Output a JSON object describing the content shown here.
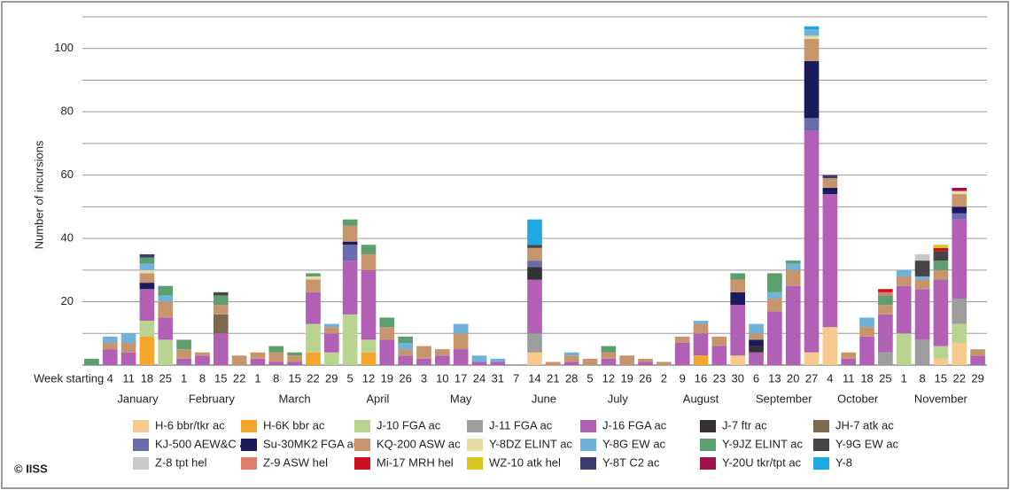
{
  "chart_data": {
    "type": "stacked-bar",
    "y_label": "Number of incursions",
    "x_label": "Week starting",
    "source": "© IISS",
    "categories": [
      null,
      4,
      11,
      18,
      25,
      1,
      8,
      15,
      22,
      1,
      8,
      15,
      22,
      29,
      5,
      12,
      19,
      26,
      3,
      10,
      17,
      24,
      31,
      7,
      14,
      21,
      28,
      5,
      12,
      19,
      26,
      2,
      9,
      16,
      23,
      30,
      6,
      13,
      20,
      27,
      4,
      11,
      18,
      25,
      1,
      8,
      15,
      22,
      29
    ],
    "months": [
      "January",
      "February",
      "March",
      "April",
      "May",
      "June",
      "July",
      "August",
      "September",
      "October",
      "November"
    ],
    "ylim": [
      0,
      110
    ],
    "yticks": [
      20,
      40,
      60,
      80,
      100
    ],
    "minor_yticks": [
      10,
      30,
      50,
      70,
      90,
      110
    ],
    "grid": true,
    "series": [
      {
        "name": "H-6 bbr/tkr ac",
        "color": "#f7c98c",
        "values": [
          0,
          0,
          0,
          0,
          0,
          0,
          0,
          0,
          0,
          0,
          0,
          0,
          0,
          0,
          0,
          0,
          0,
          0,
          0,
          0,
          0,
          0,
          0,
          0,
          4,
          0,
          0,
          0,
          0,
          0,
          0,
          0,
          0,
          0,
          0,
          3,
          0,
          0,
          0,
          4,
          12,
          0,
          0,
          0,
          0,
          0,
          2,
          7,
          0
        ]
      },
      {
        "name": "H-6K bbr ac",
        "color": "#f5a52a",
        "values": [
          0,
          0,
          0,
          9,
          0,
          0,
          0,
          0,
          0,
          0,
          0,
          0,
          4,
          0,
          0,
          4,
          0,
          0,
          0,
          0,
          0,
          0,
          0,
          0,
          0,
          0,
          0,
          0,
          0,
          0,
          0,
          0,
          0,
          3,
          0,
          0,
          0,
          0,
          0,
          0,
          0,
          0,
          0,
          0,
          0,
          0,
          0,
          0,
          0
        ]
      },
      {
        "name": "J-10 FGA ac",
        "color": "#b9d491",
        "values": [
          0,
          0,
          0,
          5,
          8,
          0,
          0,
          0,
          0,
          0,
          0,
          0,
          9,
          4,
          16,
          4,
          0,
          0,
          0,
          0,
          0,
          0,
          0,
          0,
          0,
          0,
          0,
          0,
          0,
          0,
          0,
          0,
          0,
          0,
          0,
          0,
          0,
          0,
          0,
          0,
          0,
          0,
          0,
          0,
          10,
          0,
          4,
          6,
          0
        ]
      },
      {
        "name": "J-11 FGA ac",
        "color": "#9d9d9d",
        "values": [
          0,
          0,
          0,
          0,
          0,
          0,
          0,
          0,
          0,
          0,
          0,
          0,
          0,
          0,
          0,
          0,
          0,
          0,
          0,
          0,
          0,
          0,
          0,
          0,
          6,
          0,
          0,
          0,
          0,
          0,
          0,
          0,
          0,
          0,
          0,
          0,
          0,
          0,
          0,
          0,
          0,
          0,
          0,
          4,
          0,
          8,
          0,
          8,
          0
        ]
      },
      {
        "name": "J-16 FGA ac",
        "color": "#b160b5",
        "values": [
          0,
          5,
          4,
          10,
          7,
          2,
          3,
          10,
          0,
          2,
          1,
          1,
          10,
          6,
          17,
          22,
          8,
          3,
          2,
          3,
          5,
          1,
          1,
          0,
          17,
          0,
          1,
          0,
          2,
          0,
          1,
          0,
          7,
          7,
          6,
          16,
          4,
          17,
          25,
          70,
          42,
          2,
          9,
          12,
          15,
          16,
          21,
          25,
          3
        ]
      },
      {
        "name": "J-7 ftr ac",
        "color": "#333333",
        "values": [
          0,
          0,
          0,
          0,
          0,
          0,
          0,
          0,
          0,
          0,
          0,
          0,
          0,
          0,
          0,
          0,
          0,
          0,
          0,
          0,
          0,
          0,
          0,
          0,
          4,
          0,
          0,
          0,
          0,
          0,
          0,
          0,
          0,
          0,
          0,
          0,
          2,
          0,
          0,
          0,
          0,
          0,
          0,
          0,
          0,
          0,
          0,
          0,
          0
        ]
      },
      {
        "name": "JH-7 atk ac",
        "color": "#7b6a4e",
        "values": [
          0,
          0,
          0,
          0,
          0,
          0,
          0,
          6,
          0,
          0,
          0,
          0,
          0,
          0,
          0,
          0,
          0,
          0,
          0,
          0,
          0,
          0,
          0,
          0,
          0,
          0,
          0,
          0,
          0,
          0,
          0,
          0,
          0,
          0,
          0,
          0,
          0,
          0,
          0,
          0,
          0,
          0,
          0,
          0,
          0,
          0,
          0,
          0,
          0
        ]
      },
      {
        "name": "KJ-500 AEW&C ac",
        "color": "#6b6bae",
        "values": [
          0,
          0,
          0,
          0,
          0,
          0,
          0,
          0,
          0,
          0,
          0,
          0,
          0,
          0,
          5,
          0,
          0,
          0,
          0,
          0,
          0,
          0,
          0,
          0,
          2,
          0,
          0,
          0,
          0,
          0,
          0,
          0,
          0,
          0,
          0,
          0,
          0,
          0,
          0,
          4,
          0,
          0,
          0,
          0,
          0,
          0,
          0,
          2,
          0
        ]
      },
      {
        "name": "Su-30MK2 FGA ac",
        "color": "#1b1a5c",
        "values": [
          0,
          0,
          0,
          2,
          0,
          0,
          0,
          0,
          0,
          0,
          0,
          0,
          0,
          0,
          1,
          0,
          0,
          0,
          0,
          0,
          0,
          0,
          0,
          0,
          0,
          0,
          0,
          0,
          0,
          0,
          0,
          0,
          0,
          0,
          0,
          4,
          2,
          0,
          0,
          18,
          2,
          0,
          0,
          0,
          0,
          0,
          0,
          2,
          0
        ]
      },
      {
        "name": "KQ-200 ASW ac",
        "color": "#c7956b",
        "values": [
          0,
          2,
          3,
          3,
          5,
          3,
          1,
          3,
          3,
          2,
          3,
          2,
          4,
          2,
          5,
          5,
          4,
          2,
          4,
          2,
          5,
          0,
          0,
          0,
          4,
          1,
          2,
          2,
          2,
          3,
          1,
          1,
          2,
          3,
          3,
          4,
          2,
          4,
          5,
          7,
          3,
          2,
          3,
          3,
          3,
          3,
          3,
          4,
          2
        ]
      },
      {
        "name": "Y-8DZ ELINT ac",
        "color": "#e6dba1",
        "values": [
          0,
          0,
          0,
          1,
          0,
          0,
          0,
          0,
          0,
          0,
          0,
          0,
          1,
          0,
          0,
          0,
          0,
          0,
          0,
          0,
          0,
          0,
          0,
          0,
          0,
          0,
          0,
          0,
          0,
          0,
          0,
          0,
          0,
          0,
          0,
          0,
          0,
          0,
          0,
          1,
          0,
          0,
          0,
          0,
          0,
          0,
          0,
          1,
          0
        ]
      },
      {
        "name": "Y-8G EW ac",
        "color": "#6fb1d9",
        "values": [
          0,
          2,
          3,
          2,
          2,
          0,
          0,
          0,
          0,
          0,
          0,
          0,
          0,
          1,
          0,
          0,
          0,
          2,
          0,
          0,
          3,
          2,
          1,
          0,
          0,
          0,
          1,
          0,
          0,
          0,
          0,
          0,
          0,
          1,
          0,
          0,
          3,
          2,
          2,
          2,
          0,
          0,
          3,
          0,
          2,
          1,
          0,
          0,
          0
        ]
      },
      {
        "name": "Y-9JZ ELINT ac",
        "color": "#5c9e6f",
        "values": [
          2,
          0,
          0,
          2,
          3,
          3,
          0,
          3,
          0,
          0,
          2,
          1,
          1,
          0,
          2,
          3,
          3,
          2,
          0,
          0,
          0,
          0,
          0,
          0,
          0,
          0,
          0,
          0,
          2,
          0,
          0,
          0,
          0,
          0,
          0,
          2,
          0,
          6,
          1,
          0,
          0,
          0,
          0,
          3,
          0,
          0,
          3,
          0,
          0
        ]
      },
      {
        "name": "Y-9G EW ac",
        "color": "#454545",
        "values": [
          0,
          0,
          0,
          0,
          0,
          0,
          0,
          1,
          0,
          0,
          0,
          0,
          0,
          0,
          0,
          0,
          0,
          0,
          0,
          0,
          0,
          0,
          0,
          0,
          1,
          0,
          0,
          0,
          0,
          0,
          0,
          0,
          0,
          0,
          0,
          0,
          0,
          0,
          0,
          0,
          0,
          0,
          0,
          0,
          0,
          5,
          3,
          0,
          0
        ]
      },
      {
        "name": "Z-8 tpt hel",
        "color": "#c9c9c9",
        "values": [
          0,
          0,
          0,
          0,
          0,
          0,
          0,
          0,
          0,
          0,
          0,
          0,
          0,
          0,
          0,
          0,
          0,
          0,
          0,
          0,
          0,
          0,
          0,
          0,
          0,
          0,
          0,
          0,
          0,
          0,
          0,
          0,
          0,
          0,
          0,
          0,
          0,
          0,
          0,
          0,
          0,
          0,
          0,
          0,
          0,
          2,
          0,
          0,
          0
        ]
      },
      {
        "name": "Z-9 ASW hel",
        "color": "#df7e6c",
        "values": [
          0,
          0,
          0,
          0,
          0,
          0,
          0,
          0,
          0,
          0,
          0,
          0,
          0,
          0,
          0,
          0,
          0,
          0,
          0,
          0,
          0,
          0,
          0,
          0,
          0,
          0,
          0,
          0,
          0,
          0,
          0,
          0,
          0,
          0,
          0,
          0,
          0,
          0,
          0,
          0,
          0,
          0,
          0,
          1,
          0,
          0,
          0,
          0,
          0
        ]
      },
      {
        "name": "Mi-17 MRH hel",
        "color": "#cc1122",
        "values": [
          0,
          0,
          0,
          0,
          0,
          0,
          0,
          0,
          0,
          0,
          0,
          0,
          0,
          0,
          0,
          0,
          0,
          0,
          0,
          0,
          0,
          0,
          0,
          0,
          0,
          0,
          0,
          0,
          0,
          0,
          0,
          0,
          0,
          0,
          0,
          0,
          0,
          0,
          0,
          0,
          0,
          0,
          0,
          1,
          0,
          0,
          1,
          0,
          0
        ]
      },
      {
        "name": "WZ-10 atk hel",
        "color": "#d8c51e",
        "values": [
          0,
          0,
          0,
          0,
          0,
          0,
          0,
          0,
          0,
          0,
          0,
          0,
          0,
          0,
          0,
          0,
          0,
          0,
          0,
          0,
          0,
          0,
          0,
          0,
          0,
          0,
          0,
          0,
          0,
          0,
          0,
          0,
          0,
          0,
          0,
          0,
          0,
          0,
          0,
          0,
          0,
          0,
          0,
          0,
          0,
          0,
          1,
          0,
          0
        ]
      },
      {
        "name": "Y-8T C2 ac",
        "color": "#3d3d70",
        "values": [
          0,
          0,
          0,
          1,
          0,
          0,
          0,
          0,
          0,
          0,
          0,
          0,
          0,
          0,
          0,
          0,
          0,
          0,
          0,
          0,
          0,
          0,
          0,
          0,
          0,
          0,
          0,
          0,
          0,
          0,
          0,
          0,
          0,
          0,
          0,
          0,
          0,
          0,
          0,
          0,
          1,
          0,
          0,
          0,
          0,
          0,
          0,
          0,
          0
        ]
      },
      {
        "name": "Y-20U tkr/tpt ac",
        "color": "#a0124c",
        "values": [
          0,
          0,
          0,
          0,
          0,
          0,
          0,
          0,
          0,
          0,
          0,
          0,
          0,
          0,
          0,
          0,
          0,
          0,
          0,
          0,
          0,
          0,
          0,
          0,
          0,
          0,
          0,
          0,
          0,
          0,
          0,
          0,
          0,
          0,
          0,
          0,
          0,
          0,
          0,
          0,
          0,
          0,
          0,
          0,
          0,
          0,
          0,
          1,
          0
        ]
      },
      {
        "name": "Y-8",
        "color": "#1fa9e1",
        "values": [
          0,
          0,
          0,
          0,
          0,
          0,
          0,
          0,
          0,
          0,
          0,
          0,
          0,
          0,
          0,
          0,
          0,
          0,
          0,
          0,
          0,
          0,
          0,
          0,
          8,
          0,
          0,
          0,
          0,
          0,
          0,
          0,
          0,
          0,
          0,
          0,
          0,
          0,
          0,
          1,
          0,
          0,
          0,
          0,
          0,
          0,
          0,
          0,
          0
        ]
      }
    ]
  }
}
